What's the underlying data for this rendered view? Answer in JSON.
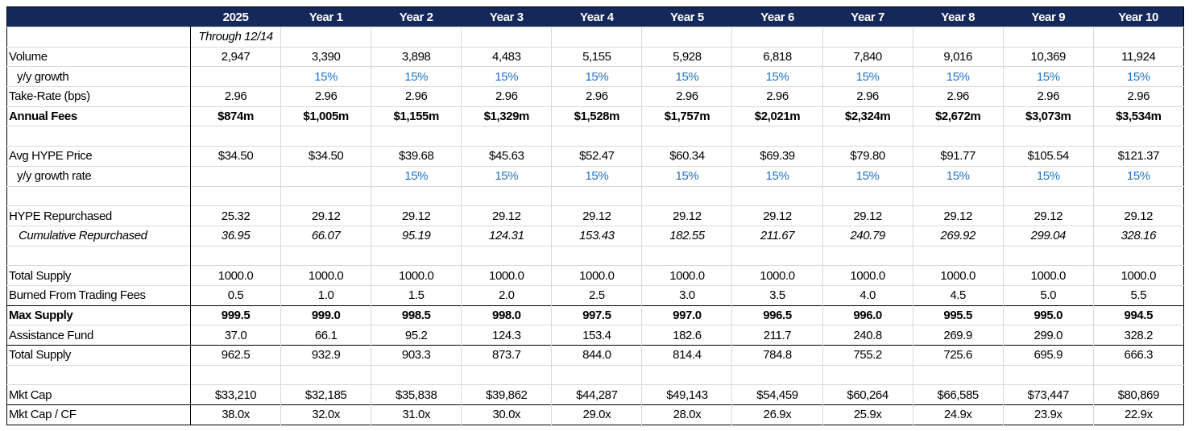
{
  "header": {
    "columns": [
      "2025",
      "Year 1",
      "Year 2",
      "Year 3",
      "Year 4",
      "Year 5",
      "Year 6",
      "Year 7",
      "Year 8",
      "Year 9",
      "Year 10"
    ]
  },
  "rows": [
    {
      "label": null,
      "style": "italic",
      "cells": [
        "Through 12/14",
        null,
        null,
        null,
        null,
        null,
        null,
        null,
        null,
        null,
        null
      ]
    },
    {
      "label": "Volume",
      "cells": [
        "2,947",
        "3,390",
        "3,898",
        "4,483",
        "5,155",
        "5,928",
        "6,818",
        "7,840",
        "9,016",
        "10,369",
        "11,924"
      ]
    },
    {
      "label": "y/y growth",
      "style": "growth",
      "cells": [
        null,
        "15%",
        "15%",
        "15%",
        "15%",
        "15%",
        "15%",
        "15%",
        "15%",
        "15%",
        "15%"
      ]
    },
    {
      "label": "Take-Rate (bps)",
      "cells": [
        "2.96",
        "2.96",
        "2.96",
        "2.96",
        "2.96",
        "2.96",
        "2.96",
        "2.96",
        "2.96",
        "2.96",
        "2.96"
      ]
    },
    {
      "label": "Annual Fees",
      "style": "bold",
      "cells": [
        "$874m",
        "$1,005m",
        "$1,155m",
        "$1,329m",
        "$1,528m",
        "$1,757m",
        "$2,021m",
        "$2,324m",
        "$2,672m",
        "$3,073m",
        "$3,534m"
      ]
    },
    null,
    {
      "label": "Avg HYPE Price",
      "cells": [
        "$34.50",
        "$34.50",
        "$39.68",
        "$45.63",
        "$52.47",
        "$60.34",
        "$69.39",
        "$79.80",
        "$91.77",
        "$105.54",
        "$121.37"
      ]
    },
    {
      "label": "y/y growth rate",
      "style": "growth",
      "cells": [
        null,
        null,
        "15%",
        "15%",
        "15%",
        "15%",
        "15%",
        "15%",
        "15%",
        "15%",
        "15%"
      ]
    },
    null,
    {
      "label": "HYPE Repurchased",
      "cells": [
        "25.32",
        "29.12",
        "29.12",
        "29.12",
        "29.12",
        "29.12",
        "29.12",
        "29.12",
        "29.12",
        "29.12",
        "29.12"
      ]
    },
    {
      "label": "Cumulative Repurchased",
      "style": "italic",
      "cells": [
        "36.95",
        "66.07",
        "95.19",
        "124.31",
        "153.43",
        "182.55",
        "211.67",
        "240.79",
        "269.92",
        "299.04",
        "328.16"
      ]
    },
    null,
    {
      "label": "Total Supply",
      "cells": [
        "1000.0",
        "1000.0",
        "1000.0",
        "1000.0",
        "1000.0",
        "1000.0",
        "1000.0",
        "1000.0",
        "1000.0",
        "1000.0",
        "1000.0"
      ]
    },
    {
      "label": "Burned From Trading Fees",
      "cells": [
        "0.5",
        "1.0",
        "1.5",
        "2.0",
        "2.5",
        "3.0",
        "3.5",
        "4.0",
        "4.5",
        "5.0",
        "5.5"
      ]
    },
    {
      "label": "Max Supply",
      "style": "bold",
      "separator": true,
      "cells": [
        "999.5",
        "999.0",
        "998.5",
        "998.0",
        "997.5",
        "997.0",
        "996.5",
        "996.0",
        "995.5",
        "995.0",
        "994.5"
      ]
    },
    {
      "label": "Assistance Fund",
      "cells": [
        "37.0",
        "66.1",
        "95.2",
        "124.3",
        "153.4",
        "182.6",
        "211.7",
        "240.8",
        "269.9",
        "299.0",
        "328.2"
      ]
    },
    {
      "label": "Total Supply",
      "separator": true,
      "cells": [
        "962.5",
        "932.9",
        "903.3",
        "873.7",
        "844.0",
        "814.4",
        "784.8",
        "755.2",
        "725.6",
        "695.9",
        "666.3"
      ]
    },
    null,
    {
      "label": "Mkt Cap",
      "cells": [
        "$33,210",
        "$32,185",
        "$35,838",
        "$39,862",
        "$44,287",
        "$49,143",
        "$54,459",
        "$60,264",
        "$66,585",
        "$73,447",
        "$80,869"
      ]
    },
    {
      "label": "Mkt Cap / CF",
      "separator": true,
      "cells": [
        "38.0x",
        "32.0x",
        "31.0x",
        "30.0x",
        "29.0x",
        "28.0x",
        "26.9x",
        "25.9x",
        "24.9x",
        "23.9x",
        "22.9x"
      ]
    }
  ]
}
